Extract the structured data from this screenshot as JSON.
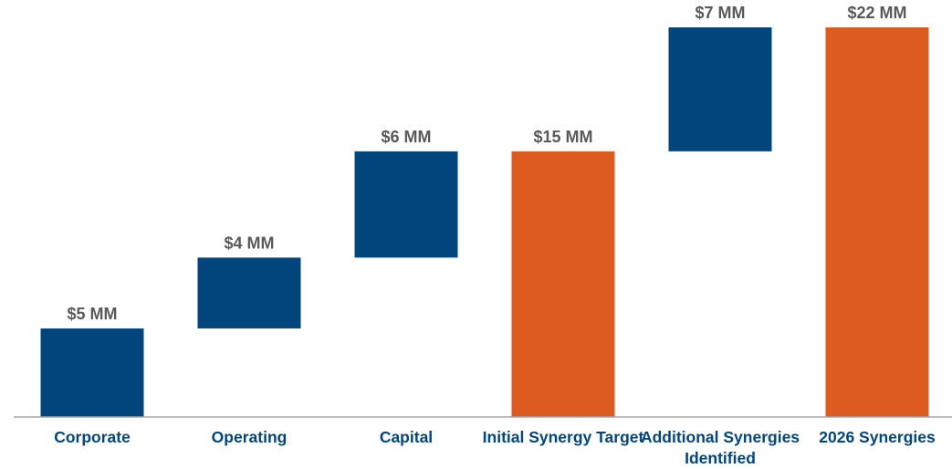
{
  "chart_data": {
    "type": "waterfall",
    "categories": [
      "Corporate",
      "Operating",
      "Capital",
      "Initial Synergy Target",
      "Additional Synergies Identified",
      "2026 Synergies"
    ],
    "values": [
      5,
      4,
      6,
      15,
      7,
      22
    ],
    "value_labels": [
      "$5 MM",
      "$4 MM",
      "$6 MM",
      "$15 MM",
      "$7 MM",
      "$22 MM"
    ],
    "is_total": [
      false,
      false,
      false,
      true,
      false,
      true
    ],
    "colors": [
      "#00457c",
      "#00457c",
      "#00457c",
      "#dd5a21",
      "#00457c",
      "#dd5a21"
    ],
    "ylim": [
      0,
      22
    ]
  }
}
